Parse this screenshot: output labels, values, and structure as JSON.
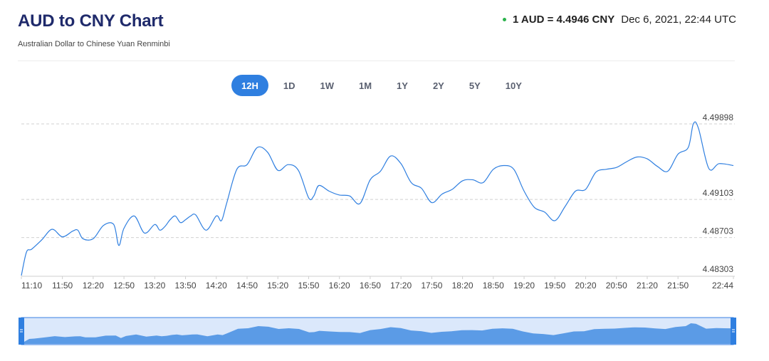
{
  "header": {
    "title": "AUD to CNY Chart",
    "subtitle": "Australian Dollar to Chinese Yuan Renminbi",
    "rate_text": "1 AUD = 4.4946 CNY",
    "timestamp": "Dec 6, 2021, 22:44 UTC",
    "status_color": "#2bb24c"
  },
  "ranges": [
    {
      "label": "12H",
      "active": true
    },
    {
      "label": "1D",
      "active": false
    },
    {
      "label": "1W",
      "active": false
    },
    {
      "label": "1M",
      "active": false
    },
    {
      "label": "1Y",
      "active": false
    },
    {
      "label": "2Y",
      "active": false
    },
    {
      "label": "5Y",
      "active": false
    },
    {
      "label": "10Y",
      "active": false
    }
  ],
  "chart_data": {
    "type": "line",
    "title": "",
    "xlabel": "",
    "ylabel": "",
    "line_color": "#2f7fe0",
    "grid": "horizontal-dashed",
    "y_ticks": [
      4.48303,
      4.48703,
      4.49103,
      4.49898
    ],
    "ylim": [
      4.48303,
      4.49898
    ],
    "x_ticks": [
      "11:10",
      "11:50",
      "12:20",
      "12:50",
      "13:20",
      "13:50",
      "14:20",
      "14:50",
      "15:20",
      "15:50",
      "16:20",
      "16:50",
      "17:20",
      "17:50",
      "18:20",
      "18:50",
      "19:20",
      "19:50",
      "20:20",
      "20:50",
      "21:20",
      "21:50",
      "22:44"
    ],
    "series": [
      {
        "x": [
          "11:10",
          "11:15",
          "11:20",
          "11:30",
          "11:40",
          "11:50",
          "12:00",
          "12:05",
          "12:10",
          "12:20",
          "12:30",
          "12:40",
          "12:45",
          "12:50",
          "13:00",
          "13:10",
          "13:20",
          "13:25",
          "13:30",
          "13:35",
          "13:40",
          "13:45",
          "13:50",
          "13:55",
          "14:00",
          "14:10",
          "14:20",
          "14:25",
          "14:30",
          "14:40",
          "14:50",
          "15:00",
          "15:10",
          "15:20",
          "15:30",
          "15:40",
          "15:50",
          "15:55",
          "16:00",
          "16:10",
          "16:20",
          "16:30",
          "16:40",
          "16:50",
          "17:00",
          "17:10",
          "17:20",
          "17:30",
          "17:40",
          "17:50",
          "18:00",
          "18:10",
          "18:20",
          "18:30",
          "18:40",
          "18:50",
          "19:00",
          "19:10",
          "19:20",
          "19:30",
          "19:40",
          "19:50",
          "20:00",
          "20:10",
          "20:20",
          "20:30",
          "20:40",
          "20:50",
          "21:00",
          "21:10",
          "21:20",
          "21:30",
          "21:40",
          "21:50",
          "22:00",
          "22:05",
          "22:10",
          "22:20",
          "22:30",
          "22:44"
        ],
        "values": [
          4.48303,
          4.4855,
          4.4858,
          4.4868,
          4.4879,
          4.4871,
          4.4877,
          4.4878,
          4.4869,
          4.4869,
          4.4883,
          4.4884,
          4.4862,
          4.488,
          4.4893,
          4.4875,
          4.4884,
          4.4878,
          4.4882,
          4.4889,
          4.4893,
          4.4886,
          4.4889,
          4.4893,
          4.4894,
          4.4878,
          4.4893,
          4.4888,
          4.4906,
          4.4942,
          4.4947,
          4.4965,
          4.496,
          4.4941,
          4.4947,
          4.4941,
          4.4912,
          4.4914,
          4.4925,
          4.4919,
          4.4915,
          4.4914,
          4.4906,
          4.4931,
          4.494,
          4.4956,
          4.4948,
          4.4928,
          4.4922,
          4.4907,
          4.4916,
          4.4921,
          4.493,
          4.4931,
          4.4928,
          4.4942,
          4.4946,
          4.4942,
          4.4919,
          4.4902,
          4.4897,
          4.4888,
          4.4903,
          4.4919,
          4.4921,
          4.4939,
          4.4942,
          4.4944,
          4.495,
          4.4955,
          4.4953,
          4.4945,
          4.494,
          4.4958,
          4.4965,
          4.499,
          4.4985,
          4.4943,
          4.4948,
          4.4946
        ]
      }
    ]
  }
}
